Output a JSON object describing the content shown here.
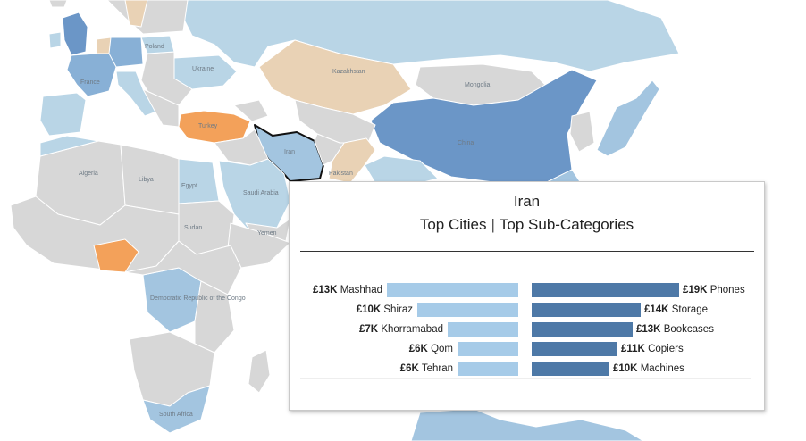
{
  "colors": {
    "ocean": "#ffffff",
    "lightest_blue": "#d0e3ef",
    "light_blue": "#b9d5e6",
    "mid_blue": "#a3c5e0",
    "blue": "#88b0d6",
    "dark_blue": "#6b96c7",
    "grey": "#d7d7d7",
    "tan": "#e9d2b5",
    "orange": "#f3a15a",
    "city_bar": "#a6cbe8",
    "category_bar": "#4e79a7"
  },
  "map": {
    "labels": [
      "Kazakhstan",
      "Mongolia",
      "China",
      "Iran",
      "Turkey",
      "France",
      "Poland",
      "Ukraine",
      "Algeria",
      "Libya",
      "Egypt",
      "Saudi Arabia",
      "Sudan",
      "Democratic Republic of the Congo",
      "South Africa",
      "Yemen",
      "Pakistan"
    ],
    "highlighted_country": "Iran"
  },
  "tooltip": {
    "country": "Iran",
    "tab_cities": "Top Cities",
    "tab_separator": "|",
    "tab_subcategories": "Top Sub-Categories",
    "cities": [
      {
        "value": "£13K",
        "name": "Mashhad",
        "amount": 13
      },
      {
        "value": "£10K",
        "name": "Shiraz",
        "amount": 10
      },
      {
        "value": "£7K",
        "name": "Khorramabad",
        "amount": 7
      },
      {
        "value": "£6K",
        "name": "Qom",
        "amount": 6
      },
      {
        "value": "£6K",
        "name": "Tehran",
        "amount": 6
      }
    ],
    "subcategories": [
      {
        "value": "£19K",
        "name": "Phones",
        "amount": 19
      },
      {
        "value": "£14K",
        "name": "Storage",
        "amount": 14
      },
      {
        "value": "£13K",
        "name": "Bookcases",
        "amount": 13
      },
      {
        "value": "£11K",
        "name": "Copiers",
        "amount": 11
      },
      {
        "value": "£10K",
        "name": "Machines",
        "amount": 10
      }
    ]
  }
}
